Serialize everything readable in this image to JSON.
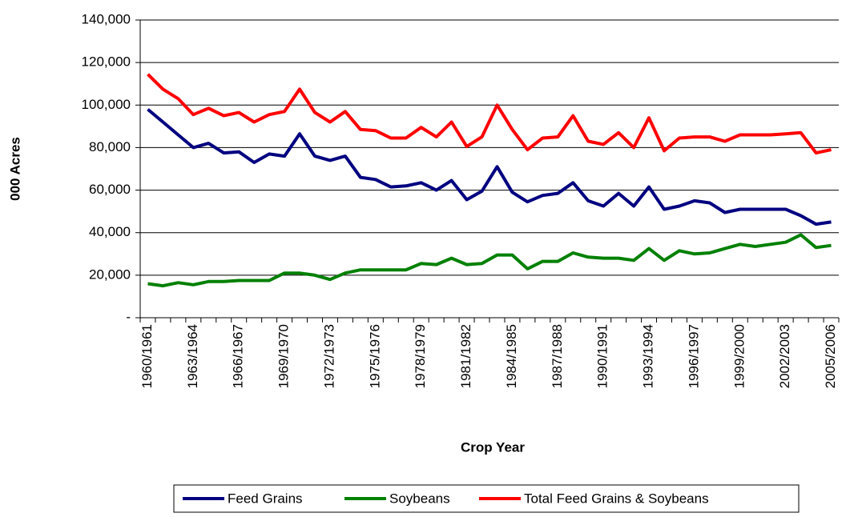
{
  "chart_data": {
    "type": "line",
    "x_label": "Crop Year",
    "y_label": "000 Acres",
    "categories": [
      "1960/1961",
      null,
      null,
      "1963/1964",
      null,
      null,
      "1966/1967",
      null,
      null,
      "1969/1970",
      null,
      null,
      "1972/1973",
      null,
      null,
      "1975/1976",
      null,
      null,
      "1978/1979",
      null,
      null,
      "1981/1982",
      null,
      null,
      "1984/1985",
      null,
      null,
      "1987/1988",
      null,
      null,
      "1990/1991",
      null,
      null,
      "1993/1994",
      null,
      null,
      "1996/1997",
      null,
      null,
      "1999/2000",
      null,
      null,
      "2002/2003",
      null,
      null,
      "2005/2006"
    ],
    "series": [
      {
        "name": "Feed Grains",
        "color": "#000080",
        "values": [
          98000,
          92000,
          86000,
          80000,
          82000,
          77500,
          78000,
          73000,
          77000,
          76000,
          86500,
          76000,
          74000,
          76000,
          66000,
          65000,
          61500,
          62000,
          63500,
          60000,
          64500,
          55500,
          59500,
          71000,
          59000,
          54500,
          57500,
          58500,
          63500,
          55000,
          52500,
          58500,
          52500,
          61500,
          51000,
          52500,
          55000,
          54000,
          49500,
          51000,
          51000,
          51000,
          51000,
          48000,
          44000,
          45000
        ]
      },
      {
        "name": "Soybeans",
        "color": "#008000",
        "values": [
          16000,
          15000,
          16500,
          15500,
          17000,
          17000,
          17500,
          17500,
          17500,
          21000,
          21000,
          20000,
          18000,
          21000,
          22500,
          22500,
          22500,
          22500,
          25500,
          25000,
          28000,
          25000,
          25500,
          29500,
          29500,
          23000,
          26500,
          26500,
          30500,
          28500,
          28000,
          28000,
          27000,
          32500,
          27000,
          31500,
          30000,
          30500,
          32500,
          34500,
          33500,
          34500,
          35500,
          39000,
          33000,
          34000
        ]
      },
      {
        "name": "Total Feed Grains & Soybeans",
        "color": "#ff0000",
        "values": [
          114500,
          107500,
          103000,
          95500,
          98500,
          95000,
          96500,
          92000,
          95500,
          97000,
          107500,
          96500,
          92000,
          97000,
          88500,
          88000,
          84500,
          84500,
          89500,
          85000,
          92000,
          80500,
          85000,
          100000,
          88500,
          79000,
          84500,
          85000,
          95000,
          83000,
          81500,
          87000,
          80000,
          94000,
          78500,
          84500,
          85000,
          85000,
          83000,
          86000,
          86000,
          86000,
          86500,
          87000,
          77500,
          79000
        ]
      }
    ],
    "ylim": [
      0,
      140000
    ],
    "yticks": [
      {
        "value": 0,
        "label": "-"
      },
      {
        "value": 20000,
        "label": "20,000"
      },
      {
        "value": 40000,
        "label": "40,000"
      },
      {
        "value": 60000,
        "label": "60,000"
      },
      {
        "value": 80000,
        "label": "80,000"
      },
      {
        "value": 100000,
        "label": "100,000"
      },
      {
        "value": 120000,
        "label": "120,000"
      },
      {
        "value": 140000,
        "label": "140,000"
      }
    ],
    "grid": true,
    "legend": "bottom"
  }
}
